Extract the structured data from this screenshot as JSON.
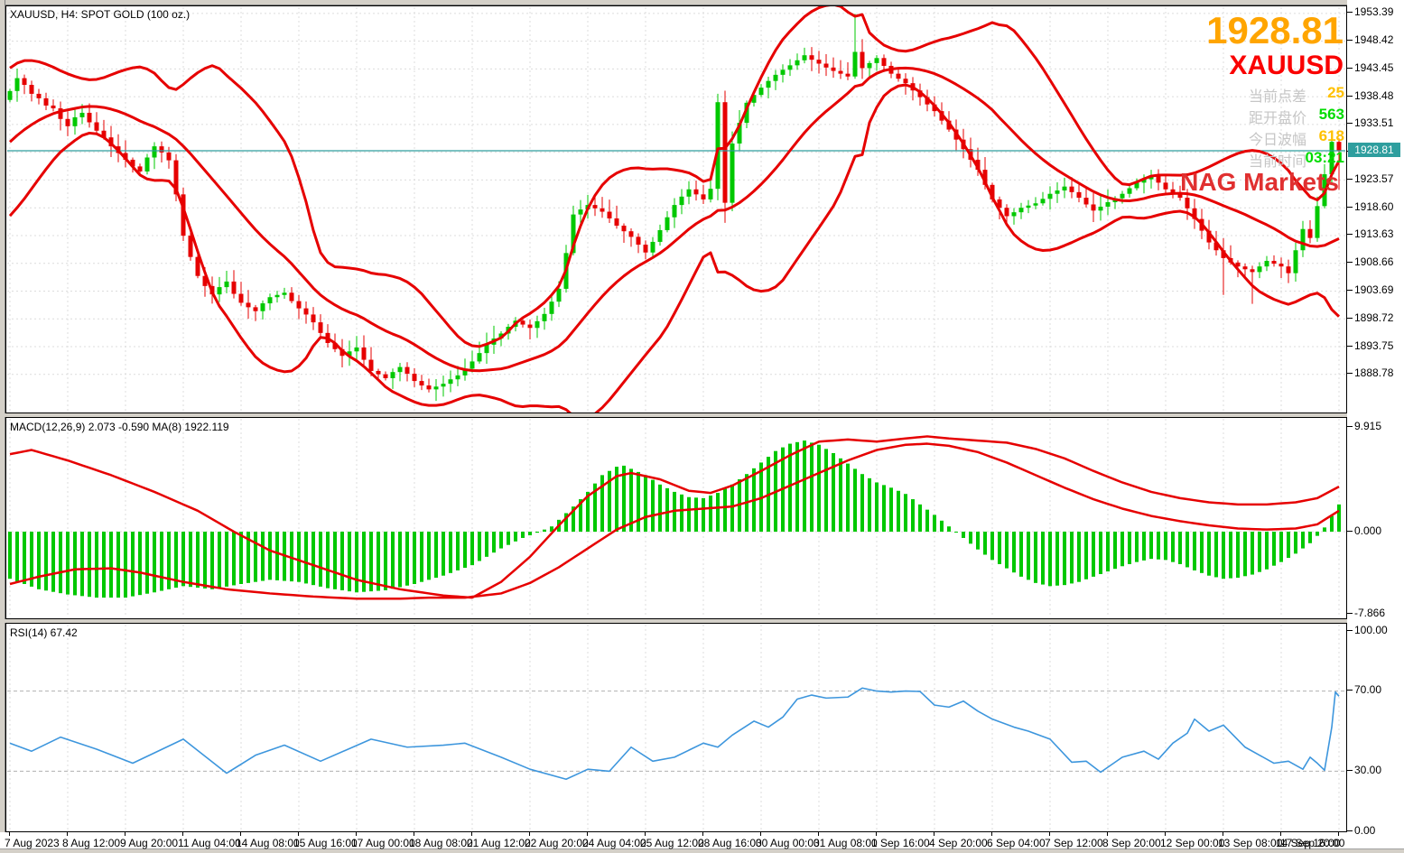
{
  "window": {
    "title": "XAUUSD, H4:  SPOT GOLD (100 oz.)"
  },
  "overlay": {
    "big_price": "1928.81",
    "symbol": "XAUUSD",
    "watermark": "NAG Markets",
    "stats": [
      {
        "label": "当前点差",
        "value": "25",
        "value_color": "#ffc000"
      },
      {
        "label": "距开盘价",
        "value": "563",
        "value_color": "#00dc00"
      },
      {
        "label": "今日波幅",
        "value": "618",
        "value_color": "#ffc000"
      },
      {
        "label": "当前时间",
        "value": "03:21",
        "value_color": "#00dc00"
      }
    ]
  },
  "macd_label": "MACD(12,26,9) 2.073 -0.590 MA(8) 1922.119",
  "rsi_label": "RSI(14) 67.42",
  "price_tag": "1928.81",
  "colors": {
    "bull": "#00c800",
    "bear": "#e60000",
    "band": "#e60000",
    "macd_hist": "#00c800",
    "macd_line": "#e60000",
    "rsi_line": "#3d96dd",
    "price_line": "#2e9e9e",
    "tag_bg": "#2e9e9e",
    "big_price": "#ffa500",
    "symbol_red": "#fa0000",
    "stat_label": "#c6c6c6",
    "watermark": "#e03030",
    "grid": "#dcdcdc",
    "level": "#b0b0b0",
    "panel_border": "#000000"
  },
  "axes": {
    "time_labels": [
      "7 Aug 2023",
      "8 Aug 12:00",
      "9 Aug 20:00",
      "11 Aug 04:00",
      "14 Aug 08:00",
      "15 Aug 16:00",
      "17 Aug 00:00",
      "18 Aug 08:00",
      "21 Aug 12:00",
      "22 Aug 20:00",
      "24 Aug 04:00",
      "25 Aug 12:00",
      "28 Aug 16:00",
      "30 Aug 00:00",
      "31 Aug 08:00",
      "1 Sep 16:00",
      "4 Sep 20:00",
      "6 Sep 04:00",
      "7 Sep 12:00",
      "8 Sep 20:00",
      "12 Sep 00:00",
      "13 Sep 08:00",
      "14 Sep 16:00",
      "17 Sep 20:00"
    ],
    "price_ticks": [
      1953.39,
      1948.42,
      1943.45,
      1938.48,
      1933.51,
      1928.54,
      1923.57,
      1918.6,
      1913.63,
      1908.66,
      1903.69,
      1898.72,
      1893.75,
      1888.78
    ],
    "macd_ticks": [
      9.915,
      0.0,
      -7.866
    ],
    "rsi_ticks": [
      100.0,
      70.0,
      30.0,
      0.0
    ]
  },
  "chart_data": [
    {
      "type": "candlestick",
      "panel": "price",
      "name": "XAUUSD H4 candles",
      "current_price": 1928.81,
      "first_open": 1937.9,
      "closes": [
        1939.5,
        1941.8,
        1940.6,
        1939.0,
        1938.2,
        1936.9,
        1936.4,
        1934.5,
        1933.2,
        1934.8,
        1935.6,
        1933.9,
        1932.4,
        1931.2,
        1929.6,
        1928.4,
        1927.2,
        1926.0,
        1925.1,
        1927.6,
        1929.6,
        1928.5,
        1927.1,
        1921.0,
        1913.6,
        1909.8,
        1906.4,
        1904.6,
        1903.1,
        1904.4,
        1905.4,
        1903.2,
        1901.6,
        1900.8,
        1900.1,
        1901.5,
        1902.6,
        1903.0,
        1903.4,
        1901.9,
        1900.6,
        1899.5,
        1898.1,
        1896.2,
        1894.4,
        1893.3,
        1892.1,
        1892.9,
        1893.6,
        1891.4,
        1889.4,
        1888.8,
        1888.1,
        1889.2,
        1890.1,
        1888.9,
        1887.6,
        1886.8,
        1886.1,
        1886.6,
        1887.1,
        1887.9,
        1888.6,
        1889.8,
        1891.1,
        1892.6,
        1894.1,
        1895.2,
        1896.1,
        1897.3,
        1898.4,
        1897.7,
        1897.1,
        1898.3,
        1899.6,
        1901.8,
        1904.1,
        1910.5,
        1917.4,
        1918.3,
        1919.1,
        1918.5,
        1917.9,
        1916.7,
        1915.4,
        1914.4,
        1913.4,
        1912.0,
        1910.6,
        1912.5,
        1914.6,
        1916.9,
        1919.1,
        1920.6,
        1921.9,
        1921.0,
        1920.1,
        1922.0,
        1937.5,
        1919.5,
        1930.1,
        1933.8,
        1937.4,
        1938.8,
        1940.1,
        1941.3,
        1942.4,
        1943.3,
        1944.1,
        1945.0,
        1945.9,
        1945.1,
        1944.4,
        1943.7,
        1943.1,
        1942.6,
        1942.1,
        1946.5,
        1943.6,
        1944.5,
        1945.4,
        1944.0,
        1942.6,
        1941.7,
        1940.9,
        1939.6,
        1938.4,
        1937.1,
        1935.9,
        1934.2,
        1932.6,
        1930.8,
        1929.1,
        1927.2,
        1925.4,
        1922.7,
        1920.1,
        1918.6,
        1917.1,
        1917.8,
        1918.6,
        1919.0,
        1919.4,
        1920.2,
        1921.1,
        1921.7,
        1922.4,
        1921.4,
        1920.4,
        1919.2,
        1918.1,
        1918.8,
        1919.6,
        1920.3,
        1921.1,
        1922.1,
        1923.1,
        1923.7,
        1924.4,
        1923.1,
        1921.9,
        1921.1,
        1920.4,
        1918.5,
        1916.6,
        1914.5,
        1912.4,
        1911.0,
        1909.6,
        1908.8,
        1908.1,
        1907.6,
        1907.1,
        1908.1,
        1909.1,
        1908.6,
        1908.1,
        1906.9,
        1911.0,
        1914.8,
        1913.2,
        1918.9,
        1924.6,
        1930.4,
        1928.8
      ],
      "wick_overrides": {
        "1": {
          "h": 1943.5
        },
        "98": {
          "h": 1939.0
        },
        "99": {
          "l": 1915.9
        },
        "117": {
          "h": 1953.3
        },
        "168": {
          "l": 1903.0
        },
        "172": {
          "l": 1901.4
        },
        "184": {
          "h": 1931.0,
          "l": 1921.8
        }
      },
      "bollinger": {
        "period": 20,
        "deviation": 2,
        "lead_in_closes": [
          1917.0,
          1918.5,
          1920.0,
          1921.2,
          1922.5,
          1924.0,
          1925.3,
          1926.6,
          1928.0,
          1929.4,
          1930.6,
          1931.8,
          1933.0,
          1934.4,
          1935.4,
          1936.3,
          1937.0,
          1937.6,
          1938.1,
          1938.6
        ]
      },
      "ylim": [
        1880.0,
        1956.0
      ]
    },
    {
      "type": "bar",
      "panel": "macd",
      "name": "macd-histogram",
      "anchors": [
        [
          0,
          -4.5
        ],
        [
          4,
          -5.5
        ],
        [
          8,
          -6.0
        ],
        [
          12,
          -6.3
        ],
        [
          16,
          -6.3
        ],
        [
          20,
          -5.8
        ],
        [
          24,
          -5.2
        ],
        [
          28,
          -5.5
        ],
        [
          32,
          -5.0
        ],
        [
          36,
          -4.6
        ],
        [
          40,
          -4.8
        ],
        [
          44,
          -5.4
        ],
        [
          48,
          -5.8
        ],
        [
          52,
          -5.6
        ],
        [
          56,
          -5.0
        ],
        [
          60,
          -4.2
        ],
        [
          64,
          -3.2
        ],
        [
          68,
          -1.6
        ],
        [
          71,
          -0.6
        ],
        [
          73,
          -0.1
        ],
        [
          75,
          0.5
        ],
        [
          78,
          2.4
        ],
        [
          80,
          3.8
        ],
        [
          82,
          5.4
        ],
        [
          84,
          6.2
        ],
        [
          85,
          6.3
        ],
        [
          88,
          5.4
        ],
        [
          90,
          4.5
        ],
        [
          92,
          3.8
        ],
        [
          94,
          3.3
        ],
        [
          96,
          3.2
        ],
        [
          98,
          3.7
        ],
        [
          100,
          4.5
        ],
        [
          102,
          5.5
        ],
        [
          104,
          6.6
        ],
        [
          106,
          7.7
        ],
        [
          108,
          8.4
        ],
        [
          110,
          8.7
        ],
        [
          112,
          8.3
        ],
        [
          114,
          7.5
        ],
        [
          116,
          6.5
        ],
        [
          118,
          5.5
        ],
        [
          120,
          4.7
        ],
        [
          122,
          4.2
        ],
        [
          124,
          3.6
        ],
        [
          126,
          2.6
        ],
        [
          128,
          1.6
        ],
        [
          130,
          0.5
        ],
        [
          132,
          -0.6
        ],
        [
          134,
          -1.7
        ],
        [
          136,
          -2.7
        ],
        [
          138,
          -3.5
        ],
        [
          140,
          -4.3
        ],
        [
          142,
          -4.9
        ],
        [
          144,
          -5.2
        ],
        [
          146,
          -5.1
        ],
        [
          148,
          -4.8
        ],
        [
          150,
          -4.3
        ],
        [
          152,
          -3.8
        ],
        [
          154,
          -3.3
        ],
        [
          156,
          -2.9
        ],
        [
          158,
          -2.6
        ],
        [
          160,
          -2.7
        ],
        [
          162,
          -3.1
        ],
        [
          164,
          -3.7
        ],
        [
          166,
          -4.2
        ],
        [
          168,
          -4.5
        ],
        [
          170,
          -4.4
        ],
        [
          172,
          -4.1
        ],
        [
          174,
          -3.6
        ],
        [
          176,
          -2.9
        ],
        [
          178,
          -2.1
        ],
        [
          180,
          -1.1
        ],
        [
          181,
          -0.4
        ],
        [
          182,
          0.4
        ],
        [
          183,
          1.5
        ],
        [
          184,
          2.6
        ]
      ],
      "ylim": [
        -7.866,
        9.915
      ]
    },
    {
      "type": "line",
      "panel": "macd",
      "name": "macd-line-fast",
      "anchors": [
        [
          0,
          7.4
        ],
        [
          3,
          7.8
        ],
        [
          8,
          6.8
        ],
        [
          14,
          5.4
        ],
        [
          20,
          3.8
        ],
        [
          26,
          2.0
        ],
        [
          31,
          0.0
        ],
        [
          36,
          -1.8
        ],
        [
          42,
          -3.2
        ],
        [
          48,
          -4.6
        ],
        [
          54,
          -5.5
        ],
        [
          60,
          -6.1
        ],
        [
          64,
          -6.3
        ],
        [
          68,
          -4.8
        ],
        [
          72,
          -2.4
        ],
        [
          76,
          0.6
        ],
        [
          80,
          3.4
        ],
        [
          84,
          5.3
        ],
        [
          86,
          5.6
        ],
        [
          90,
          5.0
        ],
        [
          94,
          3.9
        ],
        [
          97,
          3.7
        ],
        [
          100,
          4.4
        ],
        [
          104,
          5.8
        ],
        [
          108,
          7.3
        ],
        [
          112,
          8.6
        ],
        [
          116,
          8.8
        ],
        [
          120,
          8.6
        ],
        [
          124,
          8.9
        ],
        [
          127,
          9.1
        ],
        [
          130,
          8.9
        ],
        [
          134,
          8.7
        ],
        [
          138,
          8.5
        ],
        [
          142,
          7.9
        ],
        [
          146,
          7.0
        ],
        [
          150,
          5.8
        ],
        [
          154,
          4.7
        ],
        [
          158,
          3.8
        ],
        [
          162,
          3.2
        ],
        [
          166,
          2.8
        ],
        [
          170,
          2.6
        ],
        [
          174,
          2.6
        ],
        [
          178,
          2.8
        ],
        [
          181,
          3.2
        ],
        [
          184,
          4.3
        ]
      ]
    },
    {
      "type": "line",
      "panel": "macd",
      "name": "macd-line-slow",
      "anchors": [
        [
          0,
          -5.0
        ],
        [
          4,
          -4.3
        ],
        [
          9,
          -3.6
        ],
        [
          14,
          -3.5
        ],
        [
          18,
          -3.9
        ],
        [
          24,
          -4.8
        ],
        [
          30,
          -5.5
        ],
        [
          36,
          -5.9
        ],
        [
          42,
          -6.2
        ],
        [
          48,
          -6.4
        ],
        [
          54,
          -6.4
        ],
        [
          58,
          -6.3
        ],
        [
          63,
          -6.3
        ],
        [
          68,
          -5.9
        ],
        [
          72,
          -4.9
        ],
        [
          76,
          -3.4
        ],
        [
          80,
          -1.6
        ],
        [
          84,
          0.2
        ],
        [
          88,
          1.4
        ],
        [
          92,
          2.0
        ],
        [
          96,
          2.2
        ],
        [
          100,
          2.4
        ],
        [
          104,
          3.2
        ],
        [
          108,
          4.4
        ],
        [
          112,
          5.6
        ],
        [
          116,
          6.8
        ],
        [
          120,
          7.8
        ],
        [
          124,
          8.3
        ],
        [
          127,
          8.4
        ],
        [
          130,
          8.2
        ],
        [
          134,
          7.6
        ],
        [
          138,
          6.6
        ],
        [
          142,
          5.4
        ],
        [
          146,
          4.2
        ],
        [
          150,
          3.1
        ],
        [
          154,
          2.2
        ],
        [
          158,
          1.5
        ],
        [
          162,
          1.0
        ],
        [
          166,
          0.6
        ],
        [
          170,
          0.3
        ],
        [
          174,
          0.2
        ],
        [
          178,
          0.3
        ],
        [
          181,
          0.7
        ],
        [
          184,
          2.0
        ]
      ]
    },
    {
      "type": "line",
      "panel": "rsi",
      "name": "RSI(14)",
      "last_value": 67.42,
      "levels": [
        70,
        30
      ],
      "range": [
        0,
        100
      ],
      "anchors": [
        [
          0,
          44
        ],
        [
          3,
          40
        ],
        [
          7,
          47
        ],
        [
          12,
          41
        ],
        [
          17,
          34
        ],
        [
          24,
          46
        ],
        [
          30,
          29
        ],
        [
          34,
          38
        ],
        [
          38,
          43
        ],
        [
          43,
          35
        ],
        [
          50,
          46
        ],
        [
          55,
          42
        ],
        [
          60,
          43
        ],
        [
          63,
          44
        ],
        [
          68,
          37
        ],
        [
          72,
          31
        ],
        [
          77,
          26
        ],
        [
          80,
          31
        ],
        [
          83,
          30
        ],
        [
          86,
          42
        ],
        [
          89,
          35
        ],
        [
          92,
          37
        ],
        [
          96,
          44
        ],
        [
          98,
          42
        ],
        [
          100,
          48
        ],
        [
          103,
          55
        ],
        [
          105,
          52
        ],
        [
          107,
          57
        ],
        [
          109,
          66
        ],
        [
          111,
          68
        ],
        [
          113,
          66.5
        ],
        [
          116,
          67
        ],
        [
          118,
          71.5
        ],
        [
          120,
          70
        ],
        [
          122,
          69.5
        ],
        [
          124,
          70
        ],
        [
          126,
          69.8
        ],
        [
          128,
          63
        ],
        [
          130,
          62
        ],
        [
          132,
          65
        ],
        [
          134,
          60
        ],
        [
          136,
          56
        ],
        [
          139,
          52
        ],
        [
          141,
          50
        ],
        [
          144,
          46
        ],
        [
          147,
          34.5
        ],
        [
          149,
          35
        ],
        [
          151,
          29.5
        ],
        [
          154,
          37
        ],
        [
          157,
          40
        ],
        [
          159,
          36
        ],
        [
          161,
          44
        ],
        [
          163,
          49
        ],
        [
          164,
          56
        ],
        [
          166,
          50
        ],
        [
          168,
          53
        ],
        [
          171,
          42
        ],
        [
          173,
          38
        ],
        [
          175,
          34
        ],
        [
          177,
          35
        ],
        [
          179,
          31
        ],
        [
          180,
          37
        ],
        [
          181,
          34
        ],
        [
          182,
          30.5
        ],
        [
          183,
          52
        ],
        [
          183.5,
          69.5
        ],
        [
          184,
          67.42
        ]
      ]
    }
  ]
}
